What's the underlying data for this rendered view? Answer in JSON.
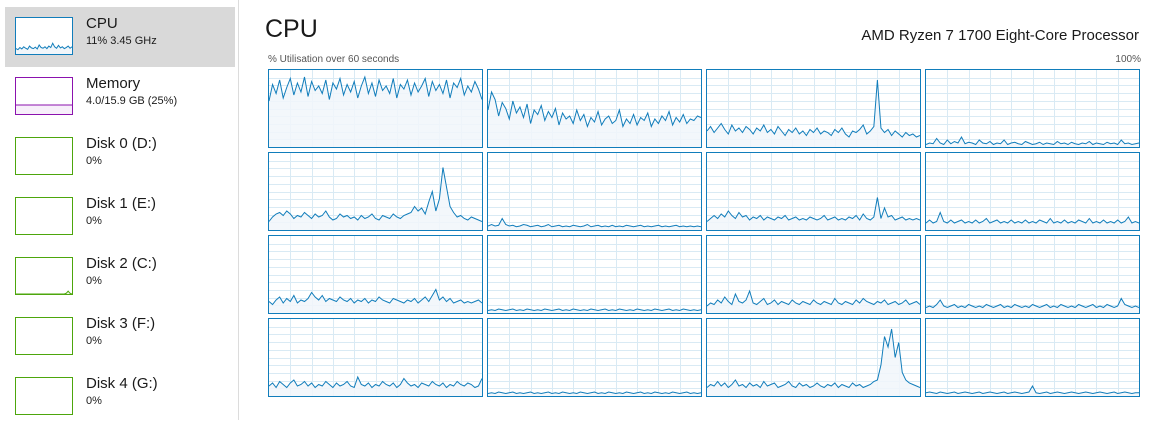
{
  "sidebar": {
    "items": [
      {
        "id": "cpu",
        "title": "CPU",
        "sub": "11%  3.45 GHz",
        "color": "#117dbb",
        "fill": "#f1f6fa",
        "selected": true,
        "spark": [
          0.15,
          0.12,
          0.18,
          0.14,
          0.2,
          0.16,
          0.13,
          0.22,
          0.17,
          0.15,
          0.19,
          0.14,
          0.25,
          0.18,
          0.16,
          0.2,
          0.15,
          0.22,
          0.18,
          0.3,
          0.2,
          0.16,
          0.24,
          0.17,
          0.2,
          0.15,
          0.18,
          0.22,
          0.16,
          0.2
        ]
      },
      {
        "id": "memory",
        "title": "Memory",
        "sub": "4.0/15.9 GB (25%)",
        "color": "#8b12ae",
        "fill": "#f7effa",
        "selected": false,
        "spark": [
          0.25,
          0.25,
          0.25,
          0.25,
          0.25,
          0.25,
          0.25,
          0.25,
          0.25,
          0.25,
          0.25,
          0.25,
          0.25,
          0.25,
          0.25,
          0.25,
          0.25,
          0.25,
          0.25,
          0.25,
          0.25,
          0.25,
          0.25,
          0.25,
          0.25,
          0.25,
          0.25,
          0.25,
          0.25,
          0.25
        ]
      },
      {
        "id": "disk0",
        "title": "Disk 0 (D:)",
        "sub": "0%",
        "color": "#4da60c",
        "fill": "#eff7ea",
        "selected": false,
        "spark": []
      },
      {
        "id": "disk1",
        "title": "Disk 1 (E:)",
        "sub": "0%",
        "color": "#4da60c",
        "fill": "#eff7ea",
        "selected": false,
        "spark": []
      },
      {
        "id": "disk2",
        "title": "Disk 2 (C:)",
        "sub": "0%",
        "color": "#4da60c",
        "fill": "#eff7ea",
        "selected": false,
        "spark": [
          0,
          0,
          0,
          0,
          0,
          0,
          0,
          0,
          0,
          0,
          0,
          0,
          0,
          0,
          0,
          0,
          0,
          0,
          0,
          0,
          0,
          0,
          0,
          0,
          0,
          0,
          0.02,
          0.08,
          0.02,
          0
        ]
      },
      {
        "id": "disk3",
        "title": "Disk 3 (F:)",
        "sub": "0%",
        "color": "#4da60c",
        "fill": "#eff7ea",
        "selected": false,
        "spark": []
      },
      {
        "id": "disk4",
        "title": "Disk 4 (G:)",
        "sub": "0%",
        "color": "#4da60c",
        "fill": "#eff7ea",
        "selected": false,
        "spark": []
      }
    ]
  },
  "main": {
    "title": "CPU",
    "processor": "AMD Ryzen 7 1700 Eight-Core Processor",
    "axis_left": "% Utilisation over 60 seconds",
    "axis_right": "100%",
    "line_color": "#117dbb",
    "fill_color": "#f1f6fa",
    "grid_color": "#d9eaf4"
  },
  "chart_data": {
    "type": "area",
    "title": "CPU",
    "xlabel": "% Utilisation over 60 seconds",
    "ylabel": "",
    "xlim": [
      0,
      60
    ],
    "ylim": [
      0,
      100
    ],
    "grid": true,
    "series": [
      {
        "values": [
          60,
          82,
          70,
          88,
          64,
          78,
          90,
          68,
          84,
          72,
          92,
          66,
          86,
          74,
          80,
          70,
          88,
          62,
          84,
          76,
          90,
          68,
          82,
          72,
          86,
          64,
          80,
          92,
          70,
          84,
          66,
          88,
          74,
          80,
          70,
          90,
          64,
          82,
          76,
          88,
          68,
          84,
          72,
          80,
          90,
          66,
          86,
          74,
          82,
          70,
          88,
          64,
          84,
          78,
          90,
          68,
          80,
          72,
          86,
          76,
          62
        ]
      },
      {
        "values": [
          48,
          72,
          62,
          40,
          58,
          50,
          36,
          60,
          44,
          52,
          38,
          56,
          30,
          48,
          42,
          54,
          34,
          46,
          38,
          50,
          28,
          44,
          36,
          40,
          30,
          48,
          34,
          42,
          26,
          38,
          32,
          46,
          28,
          36,
          40,
          30,
          34,
          48,
          26,
          36,
          30,
          42,
          28,
          38,
          34,
          44,
          26,
          36,
          30,
          40,
          34,
          46,
          28,
          38,
          32,
          42,
          30,
          36,
          34,
          40,
          38
        ]
      },
      {
        "values": [
          20,
          26,
          18,
          24,
          30,
          22,
          16,
          28,
          20,
          24,
          18,
          26,
          22,
          16,
          24,
          20,
          28,
          18,
          22,
          16,
          26,
          20,
          14,
          22,
          18,
          24,
          16,
          20,
          14,
          22,
          18,
          24,
          16,
          20,
          18,
          14,
          22,
          18,
          24,
          16,
          12,
          20,
          18,
          22,
          28,
          16,
          20,
          26,
          88,
          24,
          18,
          22,
          14,
          20,
          16,
          12,
          18,
          14,
          16,
          12,
          14
        ]
      },
      {
        "values": [
          2,
          4,
          3,
          10,
          4,
          2,
          8,
          3,
          6,
          4,
          12,
          3,
          5,
          4,
          2,
          8,
          4,
          3,
          6,
          2,
          4,
          3,
          8,
          2,
          4,
          5,
          3,
          2,
          6,
          4,
          2,
          3,
          5,
          2,
          4,
          3,
          2,
          6,
          3,
          4,
          2,
          5,
          3,
          2,
          4,
          3,
          6,
          2,
          4,
          3,
          2,
          5,
          3,
          4,
          2,
          8,
          3,
          4,
          2,
          3,
          4
        ]
      },
      {
        "values": [
          10,
          16,
          20,
          22,
          18,
          24,
          20,
          14,
          18,
          16,
          22,
          18,
          14,
          20,
          16,
          18,
          24,
          16,
          12,
          14,
          20,
          16,
          18,
          14,
          16,
          12,
          18,
          14,
          16,
          20,
          14,
          12,
          18,
          16,
          14,
          20,
          16,
          14,
          18,
          20,
          22,
          30,
          24,
          28,
          20,
          36,
          50,
          24,
          40,
          82,
          56,
          30,
          22,
          16,
          18,
          14,
          12,
          16,
          14,
          12,
          10
        ]
      },
      {
        "values": [
          4,
          6,
          4,
          5,
          14,
          6,
          4,
          5,
          3,
          4,
          6,
          5,
          3,
          4,
          5,
          3,
          4,
          6,
          3,
          4,
          5,
          3,
          4,
          3,
          5,
          4,
          3,
          4,
          6,
          3,
          4,
          5,
          3,
          4,
          3,
          5,
          3,
          4,
          3,
          5,
          4,
          3,
          4,
          5,
          3,
          4,
          3,
          4,
          5,
          3,
          4,
          3,
          4,
          5,
          3,
          4,
          3,
          4,
          3,
          4,
          3
        ]
      },
      {
        "values": [
          10,
          14,
          18,
          14,
          20,
          16,
          24,
          18,
          14,
          22,
          16,
          18,
          12,
          16,
          14,
          18,
          12,
          16,
          14,
          12,
          16,
          14,
          18,
          12,
          14,
          16,
          12,
          14,
          12,
          16,
          14,
          12,
          14,
          18,
          12,
          14,
          16,
          12,
          14,
          12,
          16,
          14,
          18,
          12,
          20,
          14,
          12,
          16,
          42,
          14,
          28,
          16,
          18,
          12,
          14,
          16,
          12,
          14,
          12,
          14,
          12
        ]
      },
      {
        "values": [
          8,
          12,
          8,
          10,
          22,
          10,
          8,
          12,
          8,
          10,
          12,
          8,
          10,
          8,
          12,
          8,
          10,
          14,
          8,
          10,
          12,
          8,
          10,
          8,
          12,
          8,
          10,
          8,
          12,
          8,
          10,
          8,
          12,
          10,
          8,
          14,
          8,
          10,
          8,
          12,
          8,
          10,
          8,
          12,
          10,
          8,
          14,
          8,
          10,
          8,
          12,
          8,
          10,
          8,
          12,
          8,
          10,
          16,
          8,
          10,
          8
        ]
      },
      {
        "values": [
          14,
          10,
          16,
          20,
          12,
          18,
          14,
          22,
          12,
          16,
          14,
          18,
          26,
          20,
          16,
          22,
          14,
          18,
          16,
          14,
          20,
          16,
          14,
          18,
          12,
          16,
          14,
          18,
          12,
          16,
          14,
          20,
          16,
          14,
          12,
          18,
          16,
          14,
          12,
          16,
          14,
          18,
          12,
          16,
          20,
          14,
          22,
          30,
          16,
          20,
          14,
          18,
          12,
          14,
          16,
          12,
          14,
          12,
          14,
          16,
          12
        ]
      },
      {
        "values": [
          2,
          3,
          2,
          4,
          3,
          2,
          3,
          4,
          2,
          3,
          2,
          4,
          3,
          2,
          3,
          2,
          4,
          3,
          2,
          3,
          4,
          2,
          3,
          2,
          4,
          3,
          2,
          3,
          2,
          4,
          3,
          2,
          3,
          4,
          2,
          3,
          2,
          4,
          3,
          2,
          3,
          2,
          4,
          3,
          2,
          3,
          2,
          4,
          3,
          2,
          3,
          4,
          2,
          3,
          2,
          4,
          3,
          2,
          3,
          2,
          3
        ]
      },
      {
        "values": [
          8,
          12,
          10,
          16,
          12,
          20,
          14,
          10,
          24,
          14,
          12,
          16,
          28,
          12,
          10,
          14,
          18,
          10,
          12,
          16,
          10,
          14,
          12,
          10,
          16,
          12,
          10,
          14,
          12,
          10,
          16,
          12,
          10,
          14,
          12,
          10,
          18,
          12,
          10,
          14,
          12,
          10,
          16,
          12,
          18,
          14,
          12,
          10,
          14,
          12,
          16,
          10,
          12,
          14,
          10,
          12,
          16,
          10,
          12,
          14,
          10
        ]
      },
      {
        "values": [
          6,
          8,
          6,
          10,
          16,
          8,
          6,
          8,
          10,
          6,
          8,
          6,
          10,
          8,
          6,
          8,
          6,
          10,
          8,
          6,
          8,
          10,
          6,
          8,
          6,
          10,
          8,
          6,
          8,
          6,
          10,
          8,
          6,
          8,
          10,
          6,
          8,
          6,
          10,
          8,
          6,
          8,
          6,
          10,
          8,
          6,
          8,
          10,
          6,
          8,
          6,
          10,
          8,
          6,
          8,
          18,
          10,
          8,
          6,
          8,
          6
        ]
      },
      {
        "values": [
          12,
          16,
          10,
          18,
          14,
          10,
          16,
          20,
          12,
          14,
          18,
          12,
          16,
          10,
          14,
          12,
          18,
          14,
          10,
          16,
          12,
          14,
          18,
          12,
          10,
          24,
          14,
          12,
          16,
          10,
          14,
          12,
          18,
          14,
          12,
          16,
          10,
          14,
          22,
          16,
          12,
          14,
          10,
          16,
          14,
          12,
          18,
          14,
          12,
          16,
          10,
          14,
          12,
          18,
          14,
          12,
          16,
          14,
          10,
          12,
          22
        ]
      },
      {
        "values": [
          2,
          3,
          2,
          4,
          3,
          2,
          3,
          4,
          2,
          3,
          2,
          3,
          4,
          2,
          3,
          2,
          3,
          4,
          2,
          3,
          2,
          4,
          3,
          2,
          3,
          2,
          4,
          3,
          2,
          3,
          4,
          2,
          3,
          2,
          4,
          3,
          2,
          3,
          2,
          4,
          3,
          2,
          3,
          4,
          2,
          3,
          2,
          4,
          3,
          2,
          3,
          2,
          4,
          3,
          2,
          3,
          4,
          2,
          3,
          2,
          3
        ]
      },
      {
        "values": [
          10,
          14,
          12,
          18,
          12,
          16,
          10,
          14,
          20,
          12,
          14,
          10,
          16,
          12,
          14,
          10,
          18,
          12,
          14,
          16,
          10,
          12,
          14,
          18,
          12,
          10,
          16,
          12,
          14,
          10,
          12,
          16,
          12,
          10,
          14,
          12,
          16,
          10,
          14,
          12,
          10,
          16,
          12,
          14,
          10,
          12,
          14,
          18,
          20,
          40,
          78,
          64,
          88,
          50,
          70,
          30,
          20,
          16,
          14,
          12,
          10
        ]
      },
      {
        "values": [
          3,
          4,
          3,
          2,
          4,
          3,
          2,
          3,
          4,
          2,
          3,
          4,
          3,
          2,
          3,
          4,
          2,
          3,
          4,
          3,
          2,
          3,
          4,
          2,
          3,
          4,
          3,
          2,
          3,
          4,
          12,
          3,
          2,
          3,
          4,
          2,
          3,
          4,
          3,
          2,
          3,
          4,
          3,
          2,
          3,
          4,
          3,
          2,
          3,
          4,
          3,
          2,
          3,
          4,
          2,
          3,
          4,
          3,
          2,
          3,
          3
        ]
      }
    ]
  }
}
